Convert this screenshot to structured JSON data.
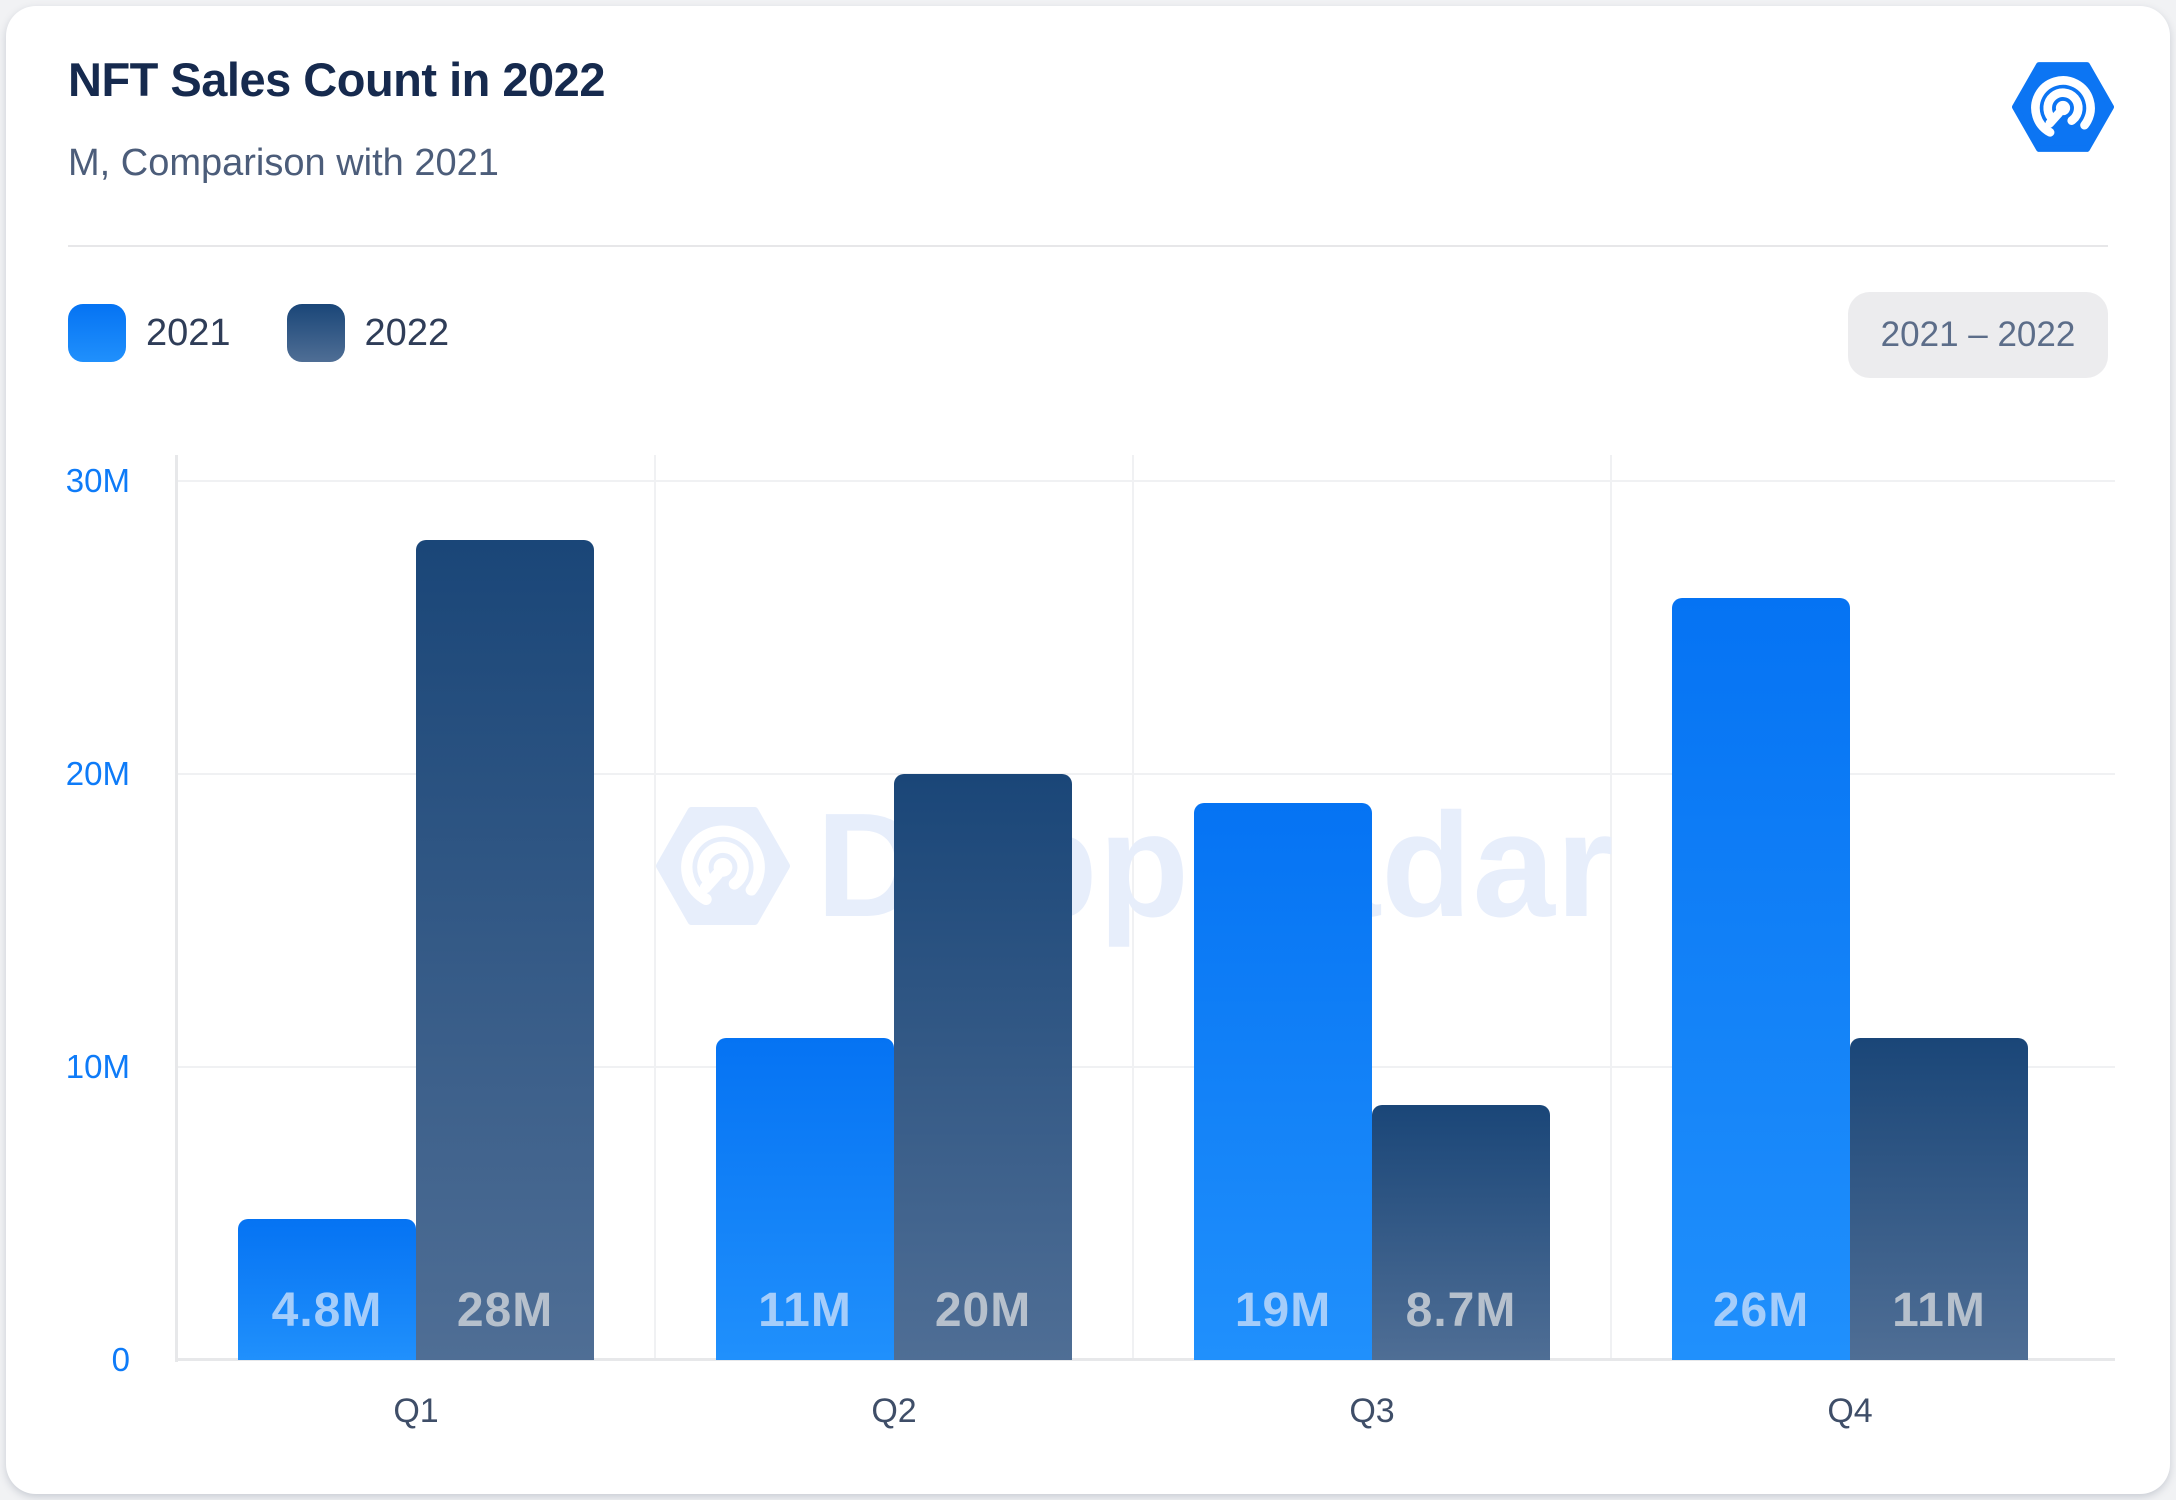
{
  "header": {
    "title": "NFT Sales Count in 2022",
    "subtitle": "M, Comparison with 2021"
  },
  "legend": {
    "items": [
      {
        "label": "2021"
      },
      {
        "label": "2022"
      }
    ],
    "range_badge": "2021 – 2022"
  },
  "watermark": {
    "text": "DappRadar"
  },
  "chart_data": {
    "type": "bar",
    "title": "NFT Sales Count in 2022",
    "subtitle": "M, Comparison with 2021",
    "unit": "M",
    "categories": [
      "Q1",
      "Q2",
      "Q3",
      "Q4"
    ],
    "series": [
      {
        "name": "2021",
        "values": [
          4.8,
          11,
          19,
          26
        ],
        "labels": [
          "4.8M",
          "11M",
          "19M",
          "26M"
        ],
        "color": "#0d7ef9",
        "label_color": "#a5cdfa"
      },
      {
        "name": "2022",
        "values": [
          28,
          20,
          8.7,
          11
        ],
        "labels": [
          "28M",
          "20M",
          "8.7M",
          "11M"
        ],
        "color": "#1a4678",
        "label_color": "#b6c0cc"
      }
    ],
    "y_ticks": [
      {
        "value": 0,
        "label": "0"
      },
      {
        "value": 10,
        "label": "10M"
      },
      {
        "value": 20,
        "label": "20M"
      },
      {
        "value": 30,
        "label": "30M"
      }
    ],
    "ylim": [
      0,
      30
    ],
    "grid": true,
    "legend_position": "top-left"
  },
  "colors": {
    "blue_top": "#0573f3",
    "blue_bottom": "#2090fc",
    "navy_top": "#1a4678",
    "navy_bottom": "#4f6e95",
    "accent": "#0c75f3",
    "title_text": "#162a4e",
    "subtitle_text": "#4c5d7a",
    "axis_label_blue": "#0e7bf8",
    "grid_line": "#f0f1f3",
    "axis_line": "#e7e8ea",
    "badge_bg": "#ececee",
    "badge_text": "#5c6d89",
    "xlabel_text": "#3f4e68",
    "watermark": "#e7eefb"
  }
}
